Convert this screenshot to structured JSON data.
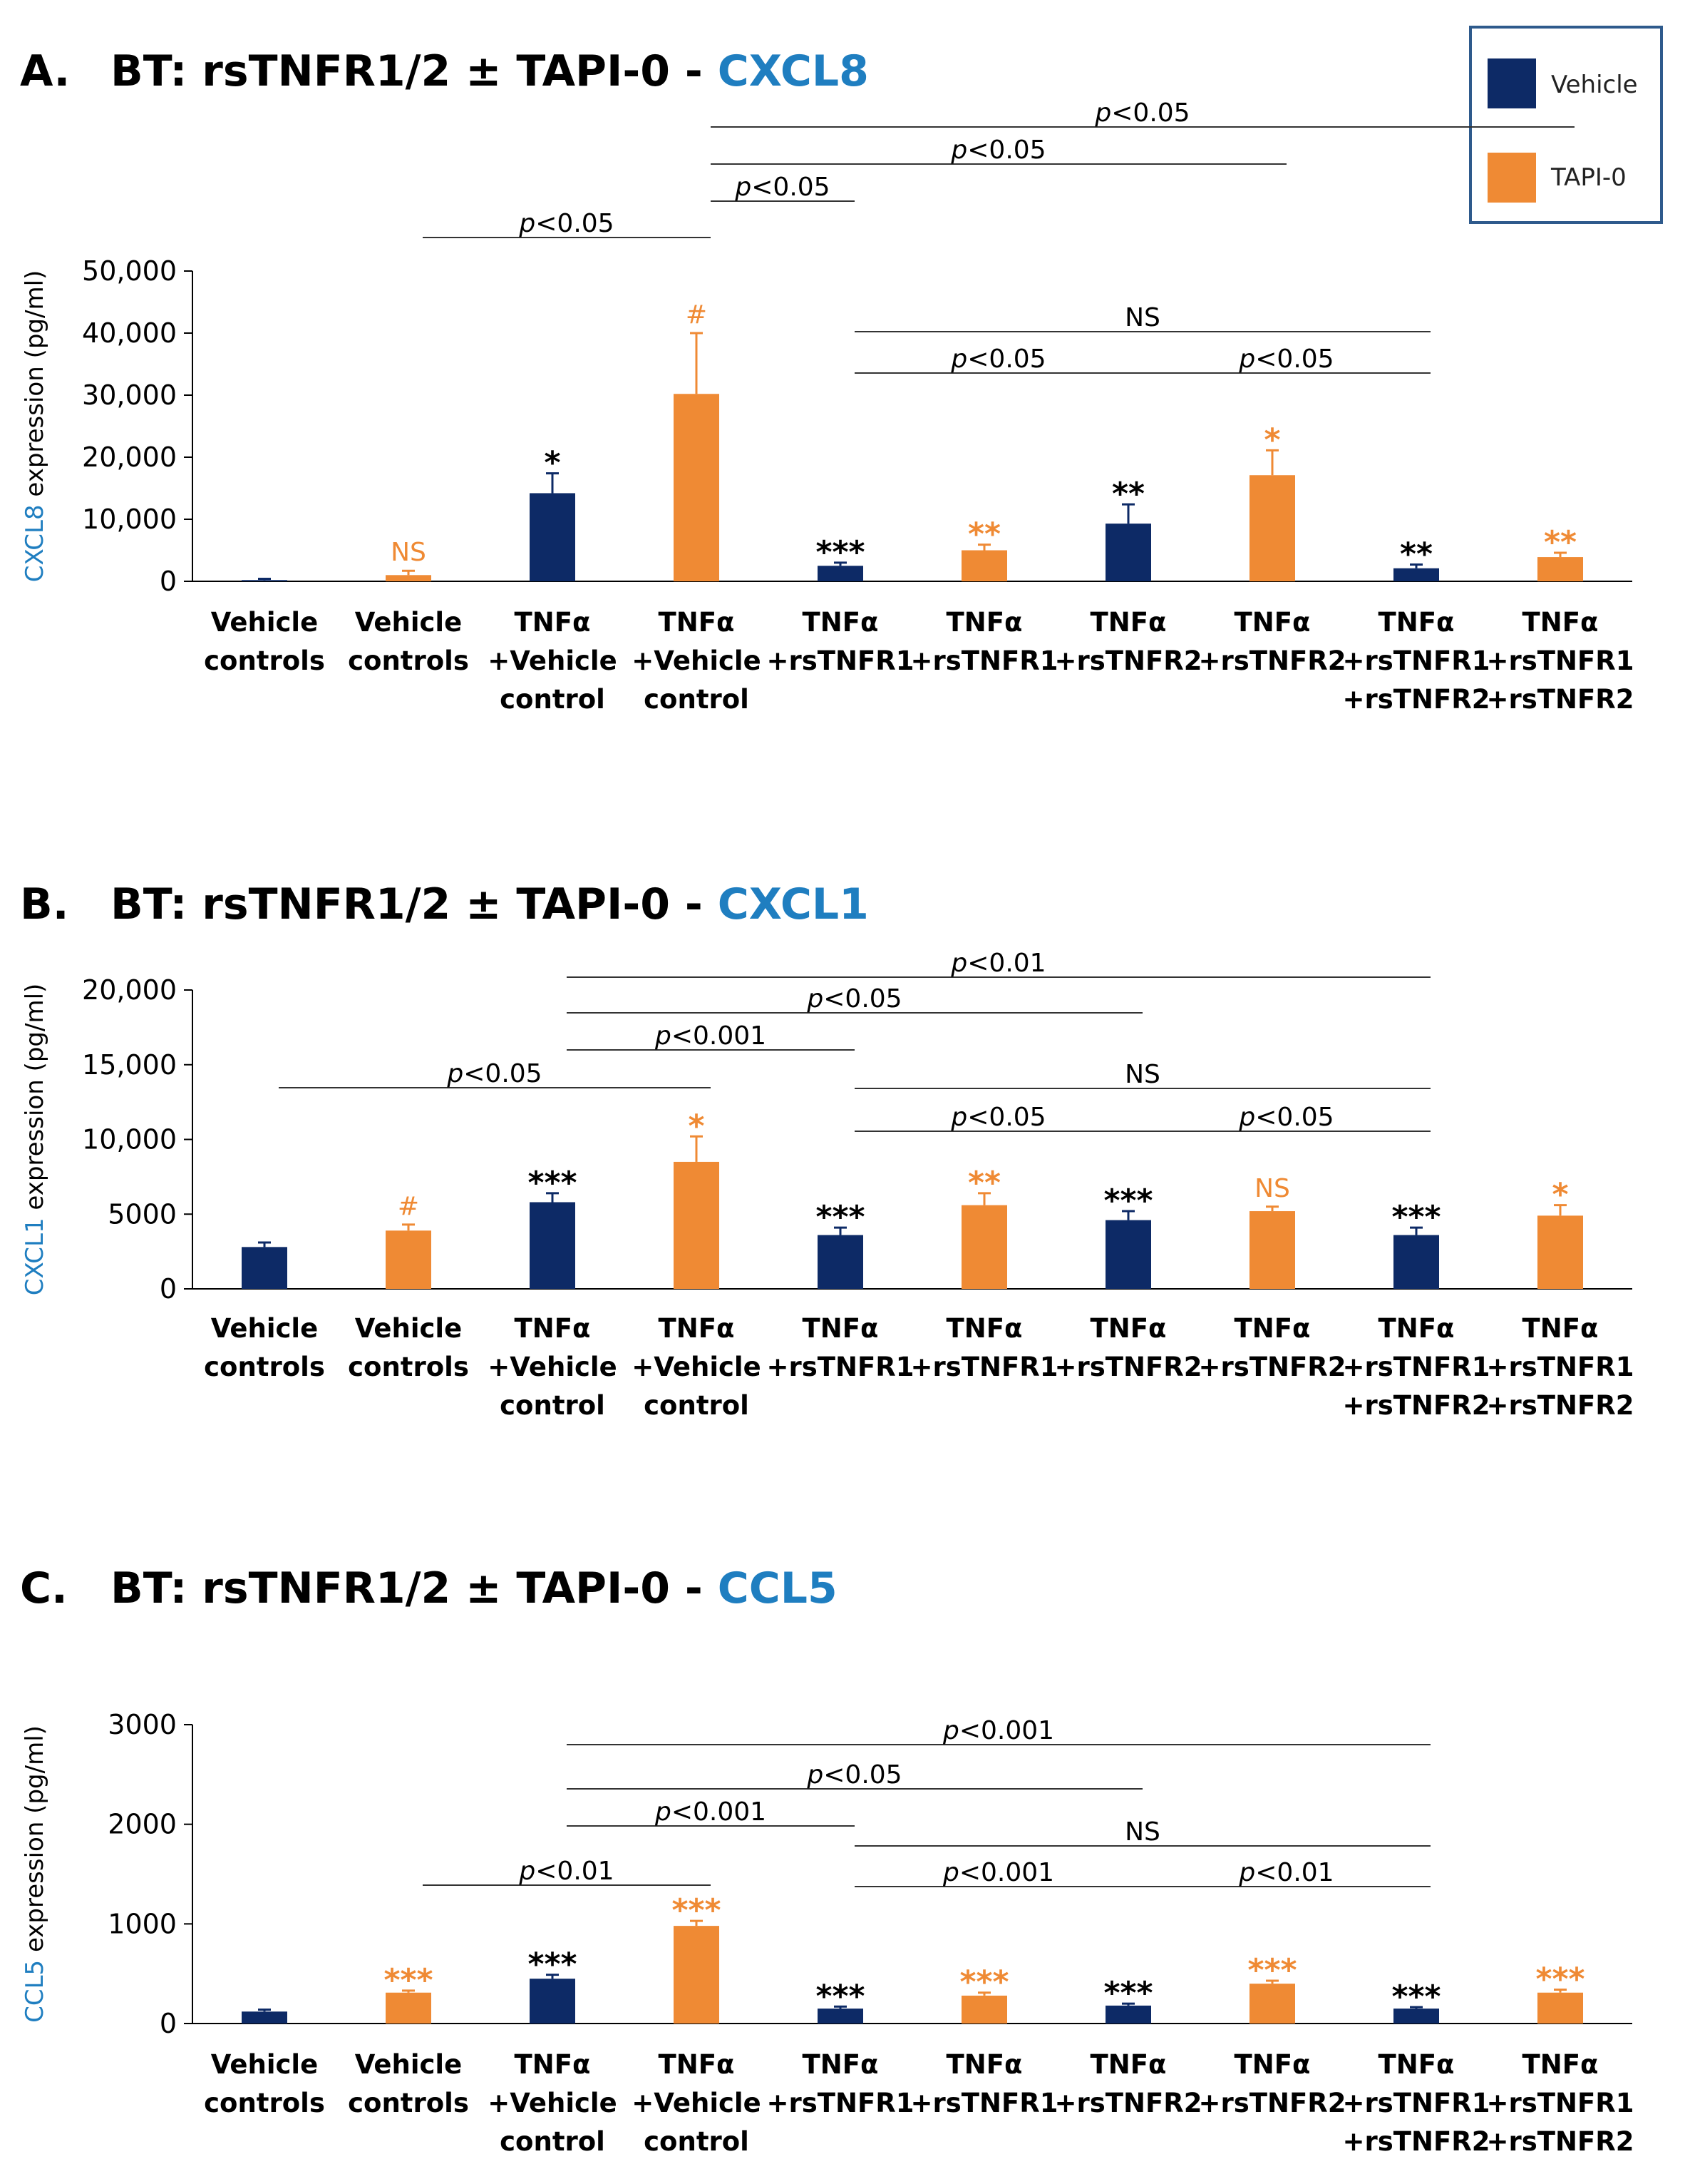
{
  "colors": {
    "vehicle": "#0d2a66",
    "tapi": "#ef8a34",
    "gene_title": "#1f7ec0",
    "axis": "#000000"
  },
  "legend": {
    "items": [
      {
        "label": "Vehicle",
        "color": "#0d2a66"
      },
      {
        "label": "TAPI-0",
        "color": "#ef8a34"
      }
    ]
  },
  "x_categories": [
    [
      "Vehicle",
      "controls"
    ],
    [
      "Vehicle",
      "controls"
    ],
    [
      "TNFα",
      "+Vehicle",
      "control"
    ],
    [
      "TNFα",
      "+Vehicle",
      "control"
    ],
    [
      "TNFα",
      "+rsTNFR1"
    ],
    [
      "TNFα",
      "+rsTNFR1"
    ],
    [
      "TNFα",
      "+rsTNFR2"
    ],
    [
      "TNFα",
      "+rsTNFR2"
    ],
    [
      "TNFα",
      "+rsTNFR1",
      "+rsTNFR2"
    ],
    [
      "TNFα",
      "+rsTNFR1",
      "+rsTNFR2"
    ]
  ],
  "chart_data": [
    {
      "panel": "A.",
      "type": "bar",
      "title_prefix": "BT: rsTNFR1/2 ± TAPI-0 - ",
      "title_gene": "CXCL8",
      "ylabel_gene": "CXCL8",
      "ylabel_rest": " expression (pg/ml)",
      "ylim": [
        0,
        50000
      ],
      "yticks": [
        0,
        10000,
        20000,
        30000,
        40000,
        50000
      ],
      "ytick_labels": [
        "0",
        "10,000",
        "20,000",
        "30,000",
        "40,000",
        "50,000"
      ],
      "groups": [
        "Vehicle",
        "TAPI-0",
        "Vehicle",
        "TAPI-0",
        "Vehicle",
        "TAPI-0",
        "Vehicle",
        "TAPI-0",
        "Vehicle",
        "TAPI-0"
      ],
      "values": [
        200,
        1000,
        14200,
        30200,
        2500,
        5000,
        9300,
        17100,
        2100,
        3900
      ],
      "errors": [
        200,
        700,
        3200,
        9800,
        500,
        900,
        3100,
        4000,
        600,
        700
      ],
      "annotations": [
        "",
        "NS",
        "*",
        "#",
        "***",
        "**",
        "**",
        "*",
        "**",
        "**"
      ],
      "brackets": [
        {
          "from": 4,
          "to": 10,
          "label": "p<0.05"
        },
        {
          "from": 4,
          "to": 8,
          "label": "p<0.05"
        },
        {
          "from": 4,
          "to": 5,
          "label": "p<0.05"
        },
        {
          "from": 2,
          "to": 4,
          "label": "p<0.05"
        },
        {
          "from": 5,
          "to": 9,
          "label": "NS"
        },
        {
          "from": 5,
          "to": 7,
          "label": "p<0.05"
        },
        {
          "from": 7,
          "to": 9,
          "label": "p<0.05"
        }
      ]
    },
    {
      "panel": "B.",
      "type": "bar",
      "title_prefix": "BT: rsTNFR1/2 ± TAPI-0 - ",
      "title_gene": "CXCL1",
      "ylabel_gene": "CXCL1",
      "ylabel_rest": " expression (pg/ml)",
      "ylim": [
        0,
        20000
      ],
      "yticks": [
        0,
        5000,
        10000,
        15000,
        20000
      ],
      "ytick_labels": [
        "0",
        "5000",
        "10,000",
        "15,000",
        "20,000"
      ],
      "groups": [
        "Vehicle",
        "TAPI-0",
        "Vehicle",
        "TAPI-0",
        "Vehicle",
        "TAPI-0",
        "Vehicle",
        "TAPI-0",
        "Vehicle",
        "TAPI-0"
      ],
      "values": [
        2800,
        3900,
        5800,
        8500,
        3600,
        5600,
        4600,
        5200,
        3600,
        4900
      ],
      "errors": [
        300,
        400,
        600,
        1700,
        500,
        800,
        600,
        300,
        500,
        700
      ],
      "annotations": [
        "",
        "#",
        "***",
        "*",
        "***",
        "**",
        "***",
        "NS",
        "***",
        "*"
      ],
      "brackets": [
        {
          "from": 3,
          "to": 9,
          "label": "p<0.01"
        },
        {
          "from": 3,
          "to": 7,
          "label": "p<0.05"
        },
        {
          "from": 3,
          "to": 5,
          "label": "p<0.001"
        },
        {
          "from": 1,
          "to": 4,
          "label": "p<0.05"
        },
        {
          "from": 5,
          "to": 9,
          "label": "NS"
        },
        {
          "from": 5,
          "to": 7,
          "label": "p<0.05"
        },
        {
          "from": 7,
          "to": 9,
          "label": "p<0.05"
        }
      ]
    },
    {
      "panel": "C.",
      "type": "bar",
      "title_prefix": "BT: rsTNFR1/2 ± TAPI-0 - ",
      "title_gene": "CCL5",
      "ylabel_gene": "CCL5",
      "ylabel_rest": " expression (pg/ml)",
      "ylim": [
        0,
        3000
      ],
      "yticks": [
        0,
        1000,
        2000,
        3000
      ],
      "ytick_labels": [
        "0",
        "1000",
        "2000",
        "3000"
      ],
      "groups": [
        "Vehicle",
        "TAPI-0",
        "Vehicle",
        "TAPI-0",
        "Vehicle",
        "TAPI-0",
        "Vehicle",
        "TAPI-0",
        "Vehicle",
        "TAPI-0"
      ],
      "values": [
        120,
        310,
        450,
        980,
        150,
        280,
        180,
        400,
        150,
        310
      ],
      "errors": [
        20,
        20,
        40,
        50,
        20,
        30,
        20,
        30,
        15,
        30
      ],
      "annotations": [
        "",
        "***",
        "***",
        "***",
        "***",
        "***",
        "***",
        "***",
        "***",
        "***"
      ],
      "brackets": [
        {
          "from": 3,
          "to": 9,
          "label": "p<0.001"
        },
        {
          "from": 3,
          "to": 7,
          "label": "p<0.05"
        },
        {
          "from": 3,
          "to": 5,
          "label": "p<0.001"
        },
        {
          "from": 2,
          "to": 4,
          "label": "p<0.01"
        },
        {
          "from": 5,
          "to": 9,
          "label": "NS"
        },
        {
          "from": 5,
          "to": 7,
          "label": "p<0.001"
        },
        {
          "from": 7,
          "to": 9,
          "label": "p<0.01"
        }
      ]
    }
  ]
}
